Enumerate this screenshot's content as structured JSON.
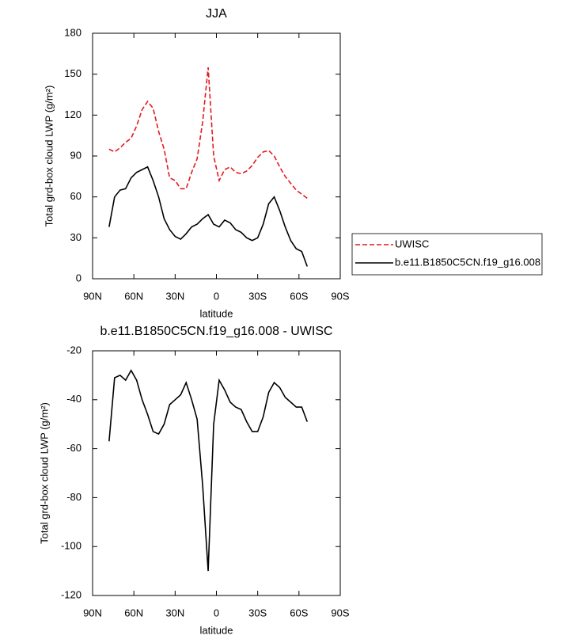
{
  "chart_data": [
    {
      "type": "line",
      "title": "JJA",
      "x_label": "latitude",
      "y_label": "Total grd-box cloud LWP (g/m²)",
      "x": [
        78,
        74,
        70,
        66,
        62,
        58,
        54,
        50,
        46,
        42,
        38,
        34,
        30,
        26,
        22,
        18,
        14,
        10,
        6,
        2,
        -2,
        -6,
        -10,
        -14,
        -18,
        -22,
        -26,
        -30,
        -34,
        -38,
        -42,
        -46,
        -50,
        -54,
        -58,
        -62,
        -66
      ],
      "series": [
        {
          "name": "UWISC",
          "color": "#e41a1c",
          "line_style": "dashed",
          "values": [
            95,
            93,
            96,
            100,
            103,
            112,
            124,
            130,
            125,
            108,
            95,
            74,
            72,
            66,
            66,
            78,
            88,
            115,
            155,
            90,
            72,
            80,
            82,
            78,
            77,
            79,
            83,
            89,
            93,
            94,
            90,
            82,
            75,
            70,
            65,
            62,
            59
          ]
        },
        {
          "name": "b.e11.B1850C5CN.f19_g16.008",
          "color": "#000000",
          "line_style": "solid",
          "values": [
            38,
            60,
            65,
            66,
            74,
            78,
            80,
            82,
            72,
            60,
            44,
            36,
            31,
            29,
            33,
            38,
            40,
            44,
            47,
            40,
            38,
            43,
            41,
            36,
            34,
            30,
            28,
            30,
            40,
            55,
            60,
            50,
            38,
            28,
            22,
            20,
            9
          ]
        }
      ],
      "xlim": [
        90,
        -90
      ],
      "xticks": [
        {
          "value": 90,
          "label": "90N"
        },
        {
          "value": 60,
          "label": "60N"
        },
        {
          "value": 30,
          "label": "30N"
        },
        0,
        {
          "value": -30,
          "label": "30S"
        },
        {
          "value": -60,
          "label": "60S"
        },
        {
          "value": -90,
          "label": "90S"
        }
      ],
      "ylim": [
        0,
        180
      ],
      "yticks": [
        0,
        30,
        60,
        90,
        120,
        150,
        180
      ],
      "legend": "right"
    },
    {
      "type": "line",
      "title": "b.e11.B1850C5CN.f19_g16.008 - UWISC",
      "x_label": "latitude",
      "y_label": "Total grd-box cloud LWP (g/m²)",
      "x": [
        78,
        74,
        70,
        66,
        62,
        58,
        54,
        50,
        46,
        42,
        38,
        34,
        30,
        26,
        22,
        18,
        14,
        10,
        6,
        2,
        -2,
        -6,
        -10,
        -14,
        -18,
        -22,
        -26,
        -30,
        -34,
        -38,
        -42,
        -46,
        -50,
        -54,
        -58,
        -62,
        -66
      ],
      "values": [
        -57,
        -31,
        -30,
        -32,
        -28,
        -32,
        -40,
        -46,
        -53,
        -54,
        -50,
        -42,
        -40,
        -38,
        -33,
        -40,
        -48,
        -75,
        -110,
        -50,
        -32,
        -36,
        -41,
        -43,
        -44,
        -49,
        -53,
        -53,
        -47,
        -37,
        -33,
        -35,
        -39,
        -41,
        -43,
        -43,
        -49
      ],
      "color": "#000000",
      "line_style": "solid",
      "xlim": [
        90,
        -90
      ],
      "xticks": [
        {
          "value": 90,
          "label": "90N"
        },
        {
          "value": 60,
          "label": "60N"
        },
        {
          "value": 30,
          "label": "30N"
        },
        0,
        {
          "value": -30,
          "label": "30S"
        },
        {
          "value": -60,
          "label": "60S"
        },
        {
          "value": -90,
          "label": "90S"
        }
      ],
      "ylim": [
        -120,
        -20
      ],
      "yticks": [
        -120,
        -100,
        -80,
        -60,
        -40,
        -20
      ]
    }
  ]
}
